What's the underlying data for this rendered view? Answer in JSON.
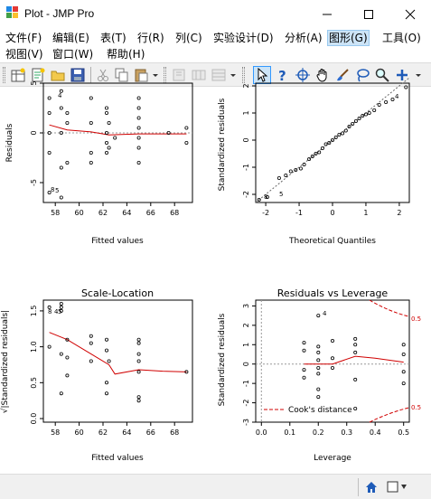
{
  "window": {
    "title": "Plot - JMP Pro",
    "minimize": "—",
    "maximize": "☐",
    "close": "✕"
  },
  "menus": [
    {
      "label": "文件(F)"
    },
    {
      "label": "编辑(E)"
    },
    {
      "label": "表(T)"
    },
    {
      "label": "行(R)"
    },
    {
      "label": "列(C)"
    },
    {
      "label": "实验设计(D)"
    },
    {
      "label": "分析(A)"
    },
    {
      "label": "图形(G)",
      "active": true
    },
    {
      "label": "工具(O)"
    },
    {
      "label": "视图(V)"
    },
    {
      "label": "窗口(W)"
    },
    {
      "label": "帮助(H)"
    }
  ],
  "toolbar": {
    "icons": [
      "new-data-table-icon",
      "new-script-icon",
      "open-icon",
      "save-icon",
      "cut-icon",
      "copy-icon",
      "paste-icon",
      "disabled-icon-1",
      "disabled-icon-2",
      "disabled-icon-3",
      "arrow-select-icon",
      "help-icon",
      "crosshair-icon",
      "grabber-icon",
      "brush-icon",
      "lasso-icon",
      "magnifier-icon",
      "add-icon"
    ]
  },
  "plots": {
    "residuals_fitted": {
      "title": "",
      "xlabel": "Fitted values",
      "ylabel": "Residuals",
      "xticks": [
        "58",
        "60",
        "62",
        "64",
        "66",
        "68"
      ],
      "yticks": [
        "-5",
        "0",
        "5"
      ],
      "labels": [
        "4",
        "8",
        "5"
      ]
    },
    "qq": {
      "title": "",
      "xlabel": "Theoretical Quantiles",
      "ylabel": "Standardized residuals",
      "xticks": [
        "-2",
        "-1",
        "0",
        "1",
        "2"
      ],
      "yticks": [
        "-2",
        "-1",
        "0",
        "1",
        "2"
      ],
      "labels": [
        "4",
        "8",
        "5"
      ]
    },
    "scale_location": {
      "title": "Scale-Location",
      "xlabel": "Fitted values",
      "ylabel": "√|Standardized residuals|",
      "xticks": [
        "58",
        "60",
        "62",
        "64",
        "66",
        "68"
      ],
      "yticks": [
        "0.0",
        "0.5",
        "1.0",
        "1.5"
      ],
      "labels": [
        "8",
        "4",
        "5"
      ]
    },
    "residuals_leverage": {
      "title": "Residuals vs Leverage",
      "xlabel": "Leverage",
      "ylabel": "Standardized residuals",
      "xticks": [
        "0.0",
        "0.1",
        "0.2",
        "0.3",
        "0.4",
        "0.5"
      ],
      "yticks": [
        "-3",
        "-2",
        "-1",
        "0",
        "1",
        "2",
        "3"
      ],
      "labels": [
        "4",
        "0.5",
        "0.5"
      ],
      "legend": "Cook's distance"
    }
  },
  "chart_data": [
    {
      "type": "scatter",
      "title": "",
      "xlabel": "Fitted values",
      "ylabel": "Residuals",
      "xlim": [
        57,
        69.5
      ],
      "ylim": [
        -7,
        5
      ],
      "points": [
        [
          57.5,
          3.5
        ],
        [
          57.5,
          2
        ],
        [
          57.5,
          0
        ],
        [
          57.5,
          -2
        ],
        [
          57.5,
          -6
        ],
        [
          58.5,
          4.2
        ],
        [
          58.5,
          2.5
        ],
        [
          58.5,
          0
        ],
        [
          58.5,
          -3.5
        ],
        [
          58.5,
          -6.5
        ],
        [
          59,
          2
        ],
        [
          59,
          1
        ],
        [
          59,
          -3
        ],
        [
          61,
          3.5
        ],
        [
          61,
          1
        ],
        [
          61,
          -2
        ],
        [
          61,
          -3
        ],
        [
          62.3,
          2.5
        ],
        [
          62.3,
          2
        ],
        [
          62.3,
          0
        ],
        [
          62.3,
          -1
        ],
        [
          62.3,
          -2
        ],
        [
          62.5,
          1
        ],
        [
          62.5,
          -1.5
        ],
        [
          63,
          -0.5
        ],
        [
          65,
          3.5
        ],
        [
          65,
          2.5
        ],
        [
          65,
          1.5
        ],
        [
          65,
          0.5
        ],
        [
          65,
          -0.5
        ],
        [
          65,
          -1.5
        ],
        [
          65,
          -3
        ],
        [
          67.5,
          0
        ],
        [
          69,
          0.5
        ],
        [
          69,
          -1
        ]
      ],
      "smoother": [
        [
          57.5,
          0.8
        ],
        [
          59,
          0.3
        ],
        [
          61,
          0.1
        ],
        [
          62.5,
          -0.2
        ],
        [
          65,
          -0.1
        ],
        [
          67,
          -0.1
        ],
        [
          69,
          -0.1
        ]
      ]
    },
    {
      "type": "scatter",
      "title": "",
      "xlabel": "Theoretical Quantiles",
      "ylabel": "Standardized residuals",
      "xlim": [
        -2.3,
        2.3
      ],
      "ylim": [
        -2.3,
        2.1
      ],
      "points": [
        [
          -2.2,
          -2.2
        ],
        [
          -1.95,
          -2.1
        ],
        [
          -1.6,
          -1.4
        ],
        [
          -1.4,
          -1.3
        ],
        [
          -1.25,
          -1.15
        ],
        [
          -1.1,
          -1.1
        ],
        [
          -0.95,
          -1.05
        ],
        [
          -0.85,
          -0.9
        ],
        [
          -0.7,
          -0.7
        ],
        [
          -0.6,
          -0.6
        ],
        [
          -0.5,
          -0.5
        ],
        [
          -0.4,
          -0.45
        ],
        [
          -0.3,
          -0.3
        ],
        [
          -0.2,
          -0.15
        ],
        [
          -0.1,
          -0.1
        ],
        [
          0,
          0
        ],
        [
          0.1,
          0.1
        ],
        [
          0.2,
          0.2
        ],
        [
          0.3,
          0.25
        ],
        [
          0.4,
          0.35
        ],
        [
          0.5,
          0.5
        ],
        [
          0.6,
          0.6
        ],
        [
          0.7,
          0.7
        ],
        [
          0.8,
          0.8
        ],
        [
          0.9,
          0.9
        ],
        [
          1.0,
          0.95
        ],
        [
          1.1,
          1.0
        ],
        [
          1.25,
          1.1
        ],
        [
          1.4,
          1.3
        ],
        [
          1.6,
          1.4
        ],
        [
          1.8,
          1.5
        ],
        [
          2.2,
          1.95
        ]
      ],
      "reference_line": [
        [
          -2.3,
          -2.3
        ],
        [
          2.3,
          2.3
        ]
      ]
    },
    {
      "type": "scatter",
      "title": "Scale-Location",
      "xlabel": "Fitted values",
      "ylabel": "√|Standardized residuals|",
      "xlim": [
        57,
        69.5
      ],
      "ylim": [
        -0.05,
        1.65
      ],
      "points": [
        [
          57.5,
          1.55
        ],
        [
          57.5,
          1.0
        ],
        [
          58.5,
          1.55
        ],
        [
          58.5,
          1.6
        ],
        [
          58.5,
          1.5
        ],
        [
          58.5,
          0.9
        ],
        [
          58.5,
          0.35
        ],
        [
          59,
          1.1
        ],
        [
          59,
          0.85
        ],
        [
          59,
          0.6
        ],
        [
          61,
          1.15
        ],
        [
          61,
          1.05
        ],
        [
          61,
          0.8
        ],
        [
          62.3,
          1.1
        ],
        [
          62.3,
          0.95
        ],
        [
          62.3,
          0.5
        ],
        [
          62.3,
          0.35
        ],
        [
          62.5,
          0.8
        ],
        [
          65,
          1.1
        ],
        [
          65,
          1.05
        ],
        [
          65,
          0.9
        ],
        [
          65,
          0.8
        ],
        [
          65,
          0.65
        ],
        [
          65,
          0.3
        ],
        [
          65,
          0.25
        ],
        [
          69,
          0.65
        ]
      ],
      "smoother": [
        [
          57.5,
          1.2
        ],
        [
          59,
          1.1
        ],
        [
          61,
          0.9
        ],
        [
          62.5,
          0.75
        ],
        [
          63,
          0.62
        ],
        [
          65,
          0.68
        ],
        [
          67,
          0.66
        ],
        [
          69,
          0.65
        ]
      ]
    },
    {
      "type": "scatter",
      "title": "Residuals vs Leverage",
      "xlabel": "Leverage",
      "ylabel": "Standardized residuals",
      "xlim": [
        -0.02,
        0.52
      ],
      "ylim": [
        -3.0,
        3.3
      ],
      "points": [
        [
          0.15,
          1.1
        ],
        [
          0.15,
          0.7
        ],
        [
          0.15,
          -0.3
        ],
        [
          0.15,
          -0.7
        ],
        [
          0.2,
          0.9
        ],
        [
          0.2,
          0.6
        ],
        [
          0.2,
          0.2
        ],
        [
          0.2,
          -0.2
        ],
        [
          0.2,
          -0.5
        ],
        [
          0.2,
          -1.3
        ],
        [
          0.2,
          -1.7
        ],
        [
          0.2,
          2.5
        ],
        [
          0.25,
          1.2
        ],
        [
          0.25,
          0.3
        ],
        [
          0.25,
          -0.2
        ],
        [
          0.33,
          1.3
        ],
        [
          0.33,
          1.0
        ],
        [
          0.33,
          0.6
        ],
        [
          0.33,
          -0.8
        ],
        [
          0.33,
          -2.3
        ],
        [
          0.5,
          1.0
        ],
        [
          0.5,
          0.5
        ],
        [
          0.5,
          -0.4
        ],
        [
          0.5,
          -1.0
        ]
      ],
      "smoother": [
        [
          0.15,
          0
        ],
        [
          0.25,
          0
        ],
        [
          0.33,
          0.4
        ],
        [
          0.4,
          0.3
        ],
        [
          0.5,
          0.1
        ]
      ],
      "legend": "Cook's distance"
    }
  ]
}
